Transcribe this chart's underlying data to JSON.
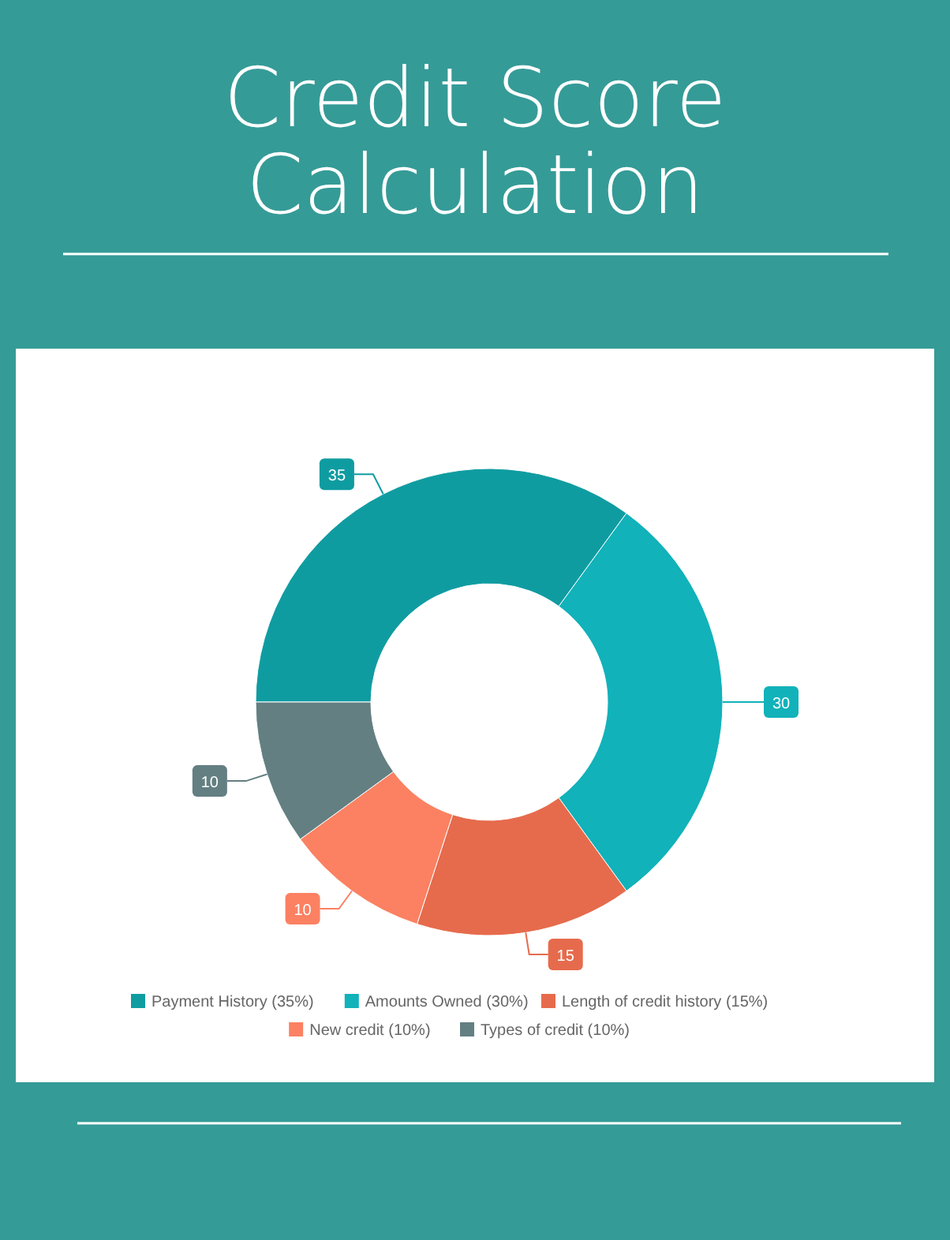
{
  "chart_data": {
    "type": "donut",
    "title": "Credit Score Calculation",
    "categories": [
      "Payment History (35%)",
      "Amounts Owned (30%)",
      "Length of credit history (15%)",
      "New credit (10%)",
      "Types of credit (10%)"
    ],
    "values": [
      35,
      30,
      15,
      10,
      10
    ],
    "colors": [
      "#0f9ca1",
      "#11b2ba",
      "#e66b4c",
      "#fb8162",
      "#637f82"
    ],
    "data_labels": true,
    "legend": "bottom"
  }
}
